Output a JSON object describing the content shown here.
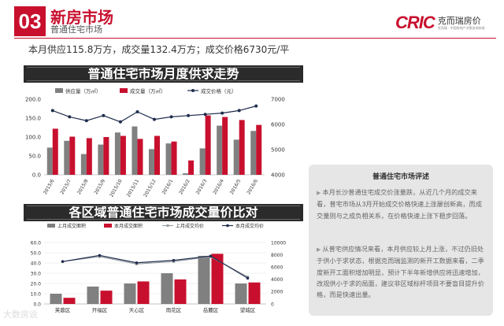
{
  "header": {
    "badge": "03",
    "title": "新房市场",
    "subtitle": "普通住宅市场",
    "logo_mark": "CRIC",
    "logo_cn": "克而瑞房价",
    "logo_cn_sub": "克而瑞 · 中国房地产决策咨询系统",
    "summary": "本月供应115.8万方，成交量132.4万方；成交价格6730元/平"
  },
  "section1_title": "普通住宅市场月度供求走势",
  "section2_title": "各区域普通住宅市场成交量价比对",
  "comment": {
    "title": "普通住宅市场评述",
    "items": [
      "本月长沙普通住宅成交价涨量跌，从近几个月的成交来看，普宅市场从3月开始成交价格快速上涨屡创新高，而成交量则与之成负相关系，在价格快速上涨下稳步回落。",
      "从普宅供应情况来看，本月供应较上月上涨，不过仍旧处于供小于求状态，根据克而瑞监测的新开工数据来看，二季度新开工面积增加明显，预计下半年新增供应将迅速增加，改观供小于求的局面，建议非区域标杆项目不要盲目提升价格，而是快速出量。"
    ]
  },
  "watermark": "大数房说",
  "colors": {
    "supply": "#808080",
    "deal": "#c8102e",
    "price": "#1f2d4d",
    "price2": "#9aa0a6"
  },
  "chart_data": [
    {
      "type": "bar",
      "title": "普通住宅市场月度供求走势",
      "categories": [
        "2015/6",
        "2015/7",
        "2015/8",
        "2015/9",
        "2015/10",
        "2015/11",
        "2015/12",
        "2016/1",
        "2016/2",
        "2016/3",
        "2016/4",
        "2016/5",
        "2016/6"
      ],
      "series": [
        {
          "name": "供应量（万㎡）",
          "type": "bar",
          "axis": "left",
          "values": [
            72,
            90,
            55,
            80,
            112,
            128,
            68,
            83,
            4,
            70,
            130,
            93,
            116
          ]
        },
        {
          "name": "成交量（万㎡）",
          "type": "bar",
          "axis": "left",
          "values": [
            122,
            101,
            97,
            100,
            103,
            95,
            103,
            88,
            38,
            157,
            153,
            145,
            132
          ]
        },
        {
          "name": "成交价格（元）",
          "type": "line",
          "axis": "right",
          "values": [
            6550,
            6300,
            6150,
            6350,
            6100,
            6500,
            6200,
            6300,
            6350,
            6400,
            6450,
            6550,
            6730
          ]
        }
      ],
      "left_axis": {
        "ylim": [
          0,
          200
        ],
        "ticks": [
          "0.0",
          "50.0",
          "100.0",
          "150.0",
          "200.0"
        ]
      },
      "right_axis": {
        "ylim": [
          4000,
          7000
        ],
        "ticks": [
          "4000",
          "5000",
          "6000",
          "7000"
        ]
      }
    },
    {
      "type": "bar",
      "title": "各区域普通住宅市场成交量价比对",
      "categories": [
        "芙蓉区",
        "开福区",
        "天心区",
        "雨花区",
        "岳麓区",
        "望城区"
      ],
      "series": [
        {
          "name": "上月成交面积",
          "type": "bar",
          "axis": "left",
          "values": [
            10,
            17,
            20,
            30,
            47,
            20
          ]
        },
        {
          "name": "本月成交面积",
          "type": "bar",
          "axis": "left",
          "values": [
            6,
            13,
            22,
            24,
            49,
            21
          ]
        },
        {
          "name": "上月成交均价",
          "type": "line",
          "axis": "right",
          "values": [
            6900,
            7700,
            6500,
            6900,
            7700,
            4400
          ]
        },
        {
          "name": "本月成交均价",
          "type": "line",
          "axis": "right",
          "values": [
            6900,
            7900,
            6700,
            7100,
            7800,
            4200
          ]
        }
      ],
      "left_axis": {
        "ylim": [
          0,
          60
        ],
        "ticks": [
          "0.0",
          "10.0",
          "20.0",
          "30.0",
          "40.0",
          "50.0",
          "60.0"
        ]
      },
      "right_axis": {
        "ylim": [
          0,
          10000
        ],
        "ticks": [
          "0",
          "2000",
          "4000",
          "6000",
          "8000",
          "10000"
        ]
      }
    }
  ]
}
